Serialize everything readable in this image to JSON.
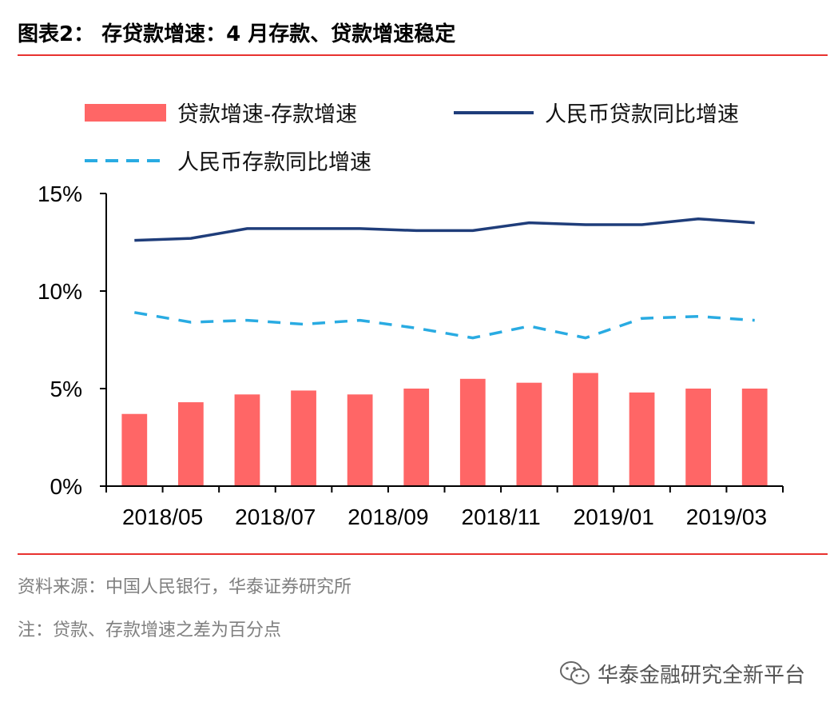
{
  "header": {
    "title": "图表2：  存贷款增速：4 月存款、贷款增速稳定"
  },
  "chart_data": {
    "type": "bar",
    "categories": [
      "2018/05",
      "2018/06",
      "2018/07",
      "2018/08",
      "2018/09",
      "2018/10",
      "2018/11",
      "2018/12",
      "2019/01",
      "2019/02",
      "2019/03",
      "2019/04"
    ],
    "x_tick_labels": [
      "2018/05",
      "2018/07",
      "2018/09",
      "2018/11",
      "2019/01",
      "2019/03"
    ],
    "y_tick_labels": [
      "0%",
      "5%",
      "10%",
      "15%"
    ],
    "ylim": [
      0,
      15
    ],
    "series": [
      {
        "name": "贷款增速-存款增速",
        "type": "bar",
        "color": "#ff6666",
        "values": [
          3.7,
          4.3,
          4.7,
          4.9,
          4.7,
          5.0,
          5.5,
          5.3,
          5.8,
          4.8,
          5.0,
          5.0
        ]
      },
      {
        "name": "人民币贷款同比增速",
        "type": "line",
        "color": "#1f3d7a",
        "values": [
          12.6,
          12.7,
          13.2,
          13.2,
          13.2,
          13.1,
          13.1,
          13.5,
          13.4,
          13.4,
          13.7,
          13.5
        ]
      },
      {
        "name": "人民币存款同比增速",
        "type": "line-dashed",
        "color": "#29abe2",
        "values": [
          8.9,
          8.4,
          8.5,
          8.3,
          8.5,
          8.1,
          7.6,
          8.2,
          7.6,
          8.6,
          8.7,
          8.5
        ]
      }
    ],
    "legend_position": "top",
    "grid": false
  },
  "footer": {
    "source": "资料来源：中国人民银行，华泰证券研究所",
    "note": "注：贷款、存款增速之差为百分点",
    "watermark": "华泰金融研究全新平台"
  }
}
